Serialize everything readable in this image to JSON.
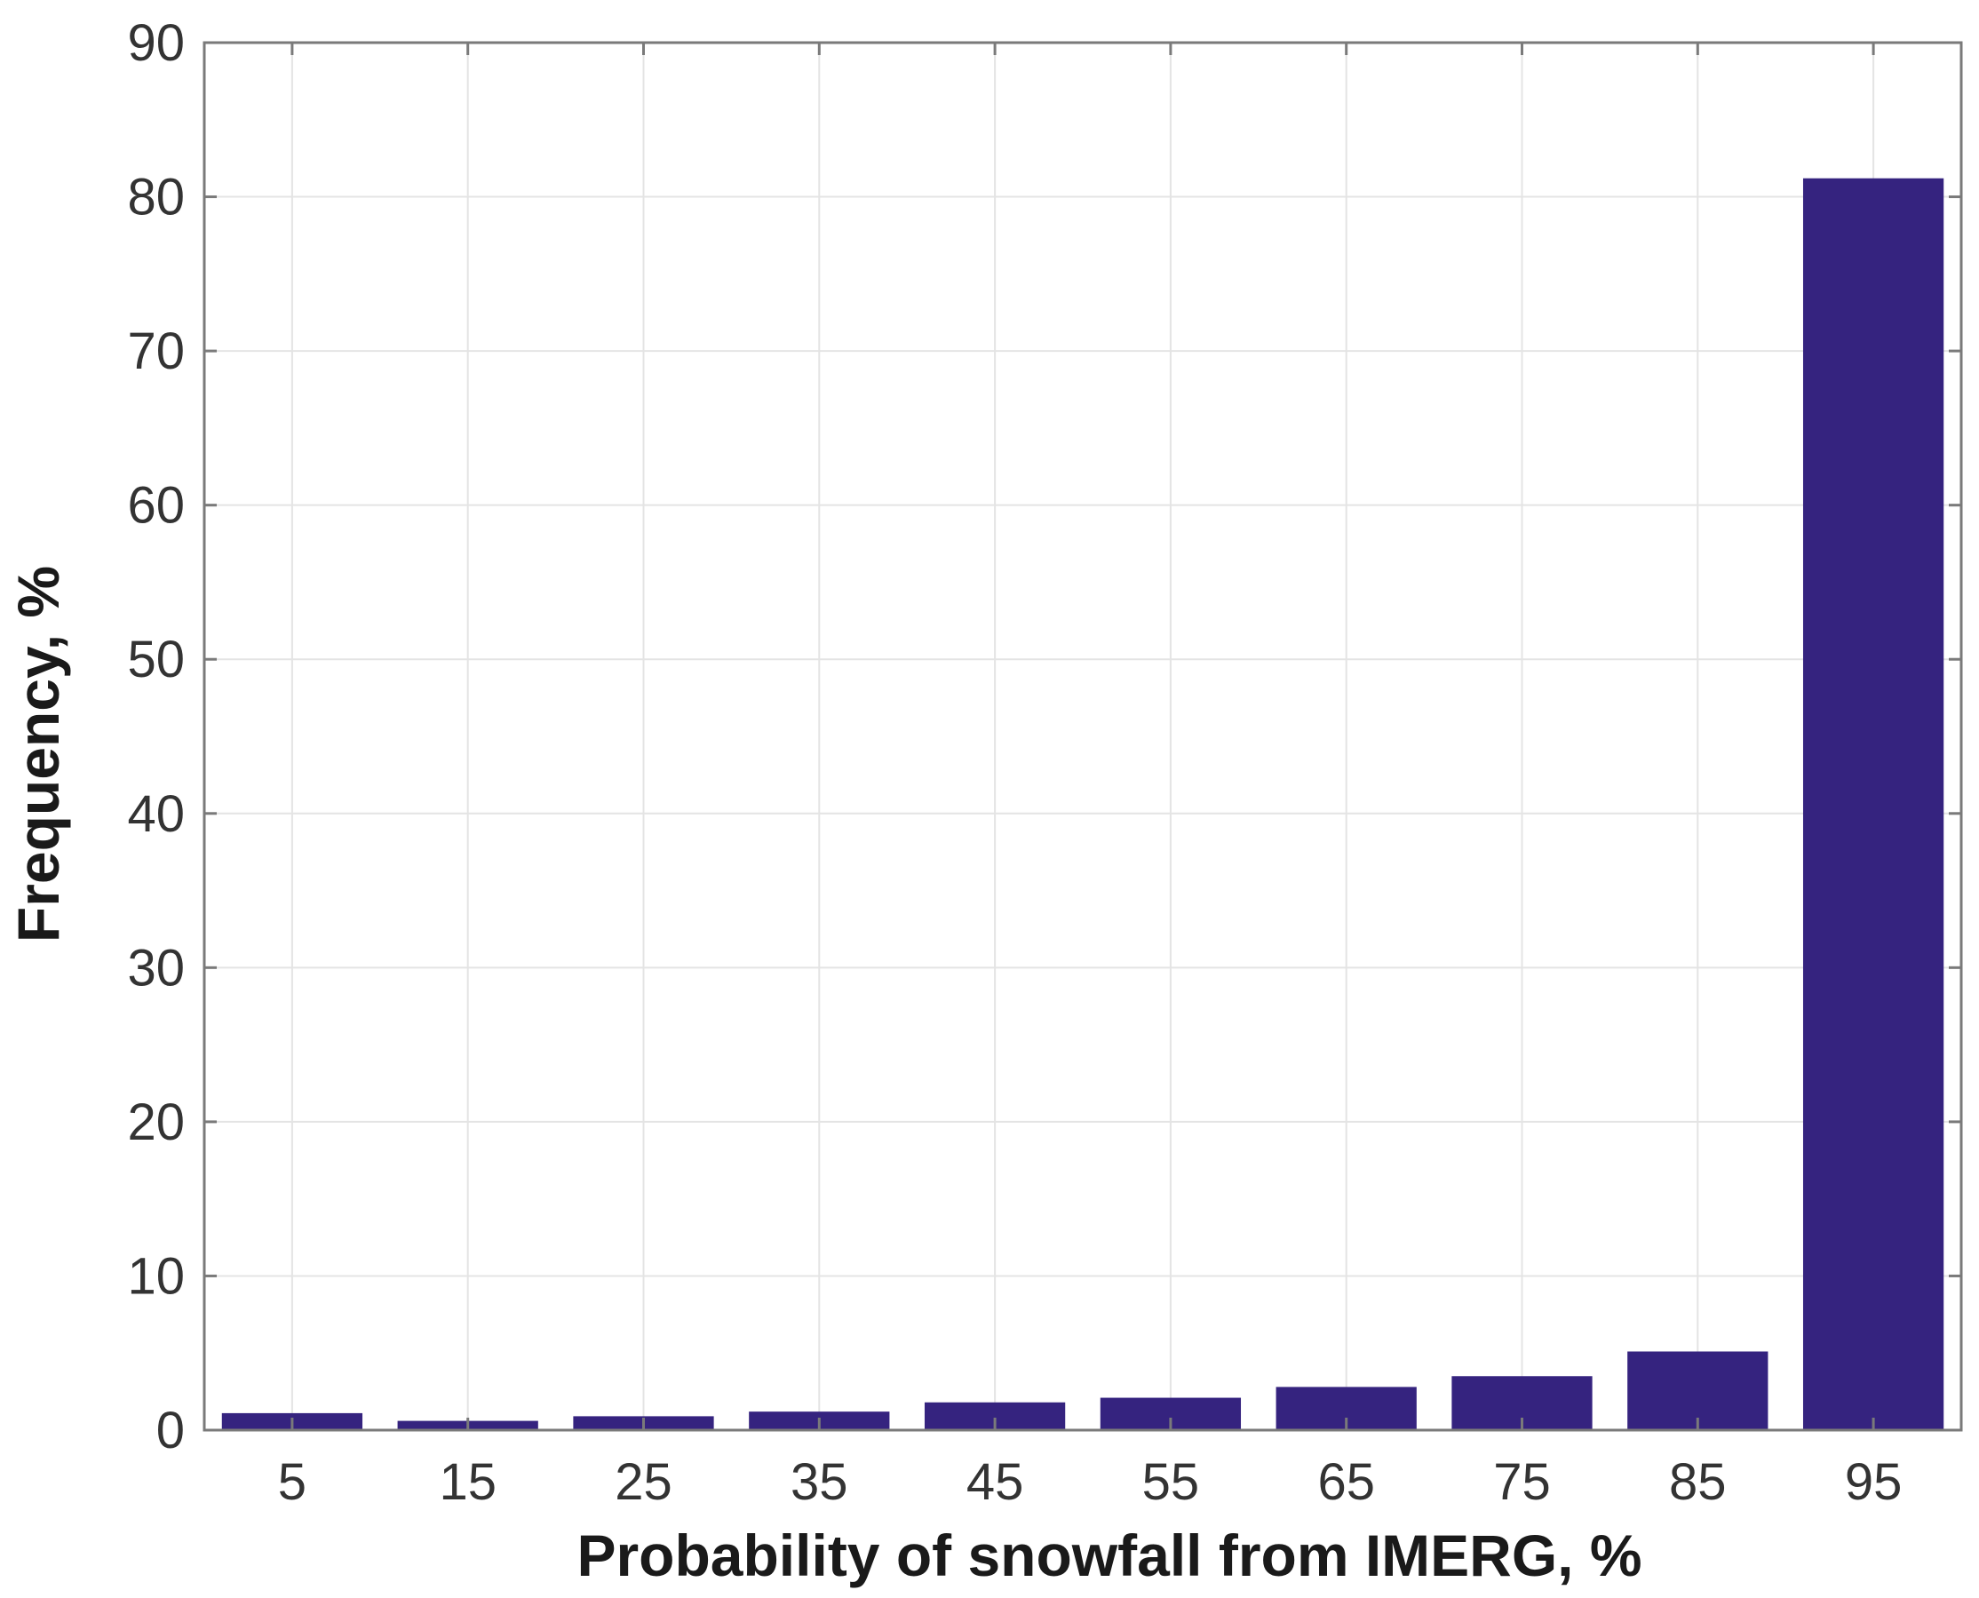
{
  "chart_data": {
    "type": "bar",
    "title": "",
    "xlabel": "Probability of snowfall from IMERG, %",
    "ylabel": "Frequency, %",
    "categories": [
      "5",
      "15",
      "25",
      "35",
      "45",
      "55",
      "65",
      "75",
      "85",
      "95"
    ],
    "values": [
      1.1,
      0.6,
      0.9,
      1.2,
      1.8,
      2.1,
      2.8,
      3.5,
      5.1,
      81.2
    ],
    "ylim": [
      0,
      90
    ],
    "yticks": [
      "0",
      "10",
      "20",
      "30",
      "40",
      "50",
      "60",
      "70",
      "80",
      "90"
    ],
    "grid": true,
    "bar_color": "#35237f",
    "legend": "none"
  }
}
